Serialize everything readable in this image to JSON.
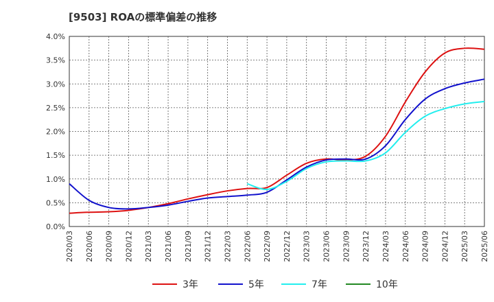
{
  "title": "[9503]  ROAの標準偏差の推移",
  "chart_data": {
    "type": "line",
    "title": "[9503]  ROAの標準偏差の推移",
    "ylim": [
      0,
      4.0
    ],
    "yticks": [
      "0.0%",
      "0.5%",
      "1.0%",
      "1.5%",
      "2.0%",
      "2.5%",
      "3.0%",
      "3.5%",
      "4.0%"
    ],
    "xticks": [
      "2020/03",
      "2020/06",
      "2020/09",
      "2020/12",
      "2021/03",
      "2021/06",
      "2021/09",
      "2021/12",
      "2022/03",
      "2022/06",
      "2022/09",
      "2022/12",
      "2023/03",
      "2023/06",
      "2023/09",
      "2023/12",
      "2024/03",
      "2024/06",
      "2024/09",
      "2024/12",
      "2025/03",
      "2025/06"
    ],
    "grid": true,
    "legend_position": "bottom",
    "series": [
      {
        "name": "3年",
        "color": "#dd1111",
        "values": [
          0.28,
          0.3,
          0.31,
          0.34,
          0.4,
          0.48,
          0.58,
          0.67,
          0.75,
          0.8,
          0.82,
          1.08,
          1.33,
          1.42,
          1.4,
          1.48,
          1.9,
          2.62,
          3.25,
          3.65,
          3.75,
          3.73
        ]
      },
      {
        "name": "5年",
        "color": "#1111cc",
        "values": [
          0.9,
          0.55,
          0.4,
          0.37,
          0.4,
          0.45,
          0.53,
          0.6,
          0.63,
          0.66,
          0.72,
          0.98,
          1.25,
          1.4,
          1.42,
          1.42,
          1.7,
          2.25,
          2.68,
          2.9,
          3.02,
          3.1
        ]
      },
      {
        "name": "7年",
        "color": "#22eeee",
        "values": [
          null,
          null,
          null,
          null,
          null,
          null,
          null,
          null,
          null,
          0.9,
          0.78,
          0.95,
          1.22,
          1.36,
          1.38,
          1.38,
          1.55,
          1.98,
          2.32,
          2.48,
          2.58,
          2.63
        ]
      },
      {
        "name": "10年",
        "color": "#228822",
        "values": []
      }
    ]
  }
}
